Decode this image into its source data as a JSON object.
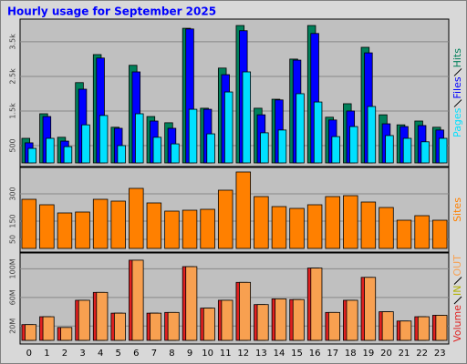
{
  "chart_data": [
    {
      "type": "bar",
      "title": "Hourly usage for September 2025",
      "ylim": [
        0,
        4050
      ],
      "yticks": [
        500,
        {
          "value": 1500,
          "label": "1.5k"
        },
        {
          "value": 2500,
          "label": "2.5k"
        },
        {
          "value": 3500,
          "label": "3.5k"
        }
      ],
      "grid": true,
      "series": [
        {
          "name": "Pages",
          "color": "#00e0ff",
          "values": [
            420,
            710,
            470,
            1100,
            1370,
            500,
            1420,
            740,
            550,
            1550,
            840,
            2050,
            2630,
            870,
            950,
            2000,
            1760,
            760,
            1050,
            1630,
            790,
            710,
            610,
            710
          ]
        },
        {
          "name": "Files",
          "color": "#0000ff",
          "values": [
            580,
            1340,
            630,
            2130,
            3030,
            1000,
            2630,
            1210,
            1000,
            3870,
            1550,
            2550,
            3820,
            1390,
            1820,
            2970,
            3740,
            1240,
            1500,
            3180,
            1130,
            1050,
            1080,
            950
          ]
        },
        {
          "name": "Hits",
          "color": "#00805a",
          "values": [
            710,
            1420,
            740,
            2320,
            3130,
            1030,
            2820,
            1340,
            1160,
            3890,
            1580,
            2740,
            3970,
            1580,
            1840,
            3000,
            3970,
            1320,
            1710,
            3340,
            1390,
            1100,
            1210,
            1030
          ]
        }
      ]
    },
    {
      "type": "bar",
      "ylim": [
        0,
        425
      ],
      "yticks": [
        50,
        150,
        300
      ],
      "grid": true,
      "series": [
        {
          "name": "Sites",
          "color": "#ff8000",
          "values": [
            270,
            240,
            195,
            200,
            270,
            260,
            330,
            250,
            205,
            210,
            215,
            320,
            420,
            285,
            230,
            220,
            240,
            285,
            290,
            255,
            225,
            155,
            180,
            155
          ]
        }
      ]
    },
    {
      "type": "bar",
      "categories": [
        "0",
        "1",
        "2",
        "3",
        "4",
        "5",
        "6",
        "7",
        "8",
        "9",
        "10",
        "11",
        "12",
        "13",
        "14",
        "15",
        "16",
        "17",
        "18",
        "19",
        "20",
        "21",
        "22",
        "23"
      ],
      "ylim": [
        0,
        117
      ],
      "yticks": [
        {
          "value": 20,
          "label": "20M"
        },
        {
          "value": 60,
          "label": "60M"
        },
        {
          "value": 100,
          "label": "100M"
        }
      ],
      "grid": true,
      "series": [
        {
          "name": "Volume",
          "color": "#e02020",
          "values": [
            22,
            33,
            18,
            56,
            67,
            38,
            112,
            38,
            39,
            103,
            45,
            56,
            81,
            50,
            58,
            57,
            101,
            39,
            56,
            88,
            40,
            27,
            33,
            35
          ]
        },
        {
          "name": "IN",
          "color": "#b0b000",
          "values": [
            null,
            null,
            null,
            null,
            null,
            null,
            null,
            null,
            null,
            null,
            null,
            null,
            null,
            null,
            null,
            null,
            null,
            null,
            null,
            null,
            null,
            null,
            null,
            null
          ]
        },
        {
          "name": "OUT",
          "color": "#f8a050",
          "values": [
            22,
            33,
            18,
            56,
            67,
            38,
            112,
            38,
            39,
            103,
            45,
            56,
            81,
            50,
            58,
            57,
            101,
            39,
            56,
            88,
            40,
            27,
            33,
            35
          ]
        }
      ]
    }
  ]
}
